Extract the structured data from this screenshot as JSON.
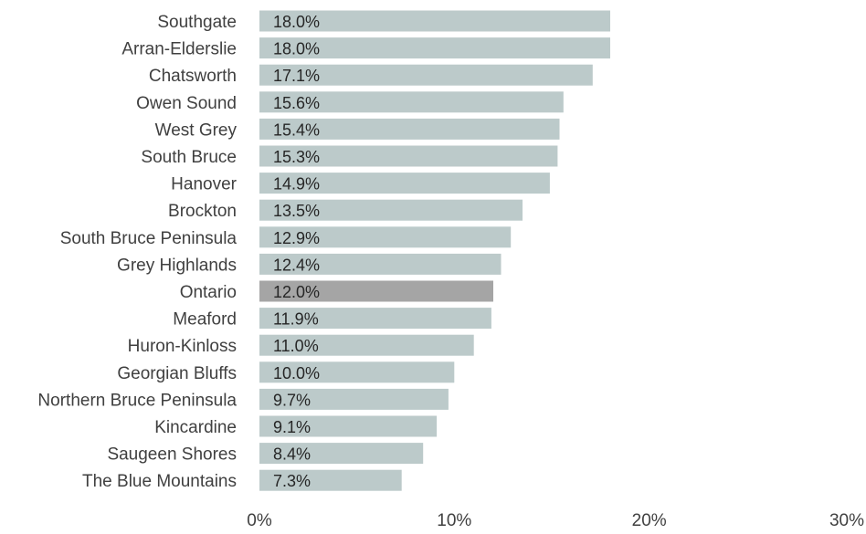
{
  "chart_data": {
    "type": "bar",
    "orientation": "horizontal",
    "title": "",
    "xlabel": "",
    "ylabel": "",
    "categories": [
      "Southgate",
      "Arran-Elderslie",
      "Chatsworth",
      "Owen Sound",
      "West Grey",
      "South Bruce",
      "Hanover",
      "Brockton",
      "South Bruce Peninsula",
      "Grey Highlands",
      "Ontario",
      "Meaford",
      "Huron-Kinloss",
      "Georgian Bluffs",
      "Northern Bruce Peninsula",
      "Kincardine",
      "Saugeen Shores",
      "The Blue Mountains"
    ],
    "values": [
      18.0,
      18.0,
      17.1,
      15.6,
      15.4,
      15.3,
      14.9,
      13.5,
      12.9,
      12.4,
      12.0,
      11.9,
      11.0,
      10.0,
      9.7,
      9.1,
      8.4,
      7.3
    ],
    "value_labels": [
      "18.0%",
      "18.0%",
      "17.1%",
      "15.6%",
      "15.4%",
      "15.3%",
      "14.9%",
      "13.5%",
      "12.9%",
      "12.4%",
      "12.0%",
      "11.9%",
      "11.0%",
      "10.0%",
      "9.7%",
      "9.1%",
      "8.4%",
      "7.3%"
    ],
    "xlim": [
      0,
      30
    ],
    "x_ticks": [
      0,
      10,
      20,
      30
    ],
    "x_tick_labels": [
      "0%",
      "10%",
      "20%",
      "30%"
    ],
    "grid": false,
    "legend": "none",
    "colors": {
      "bar": "#bccaca",
      "highlight_bar": "#a5a5a5",
      "highlight_category": "Ontario"
    }
  }
}
